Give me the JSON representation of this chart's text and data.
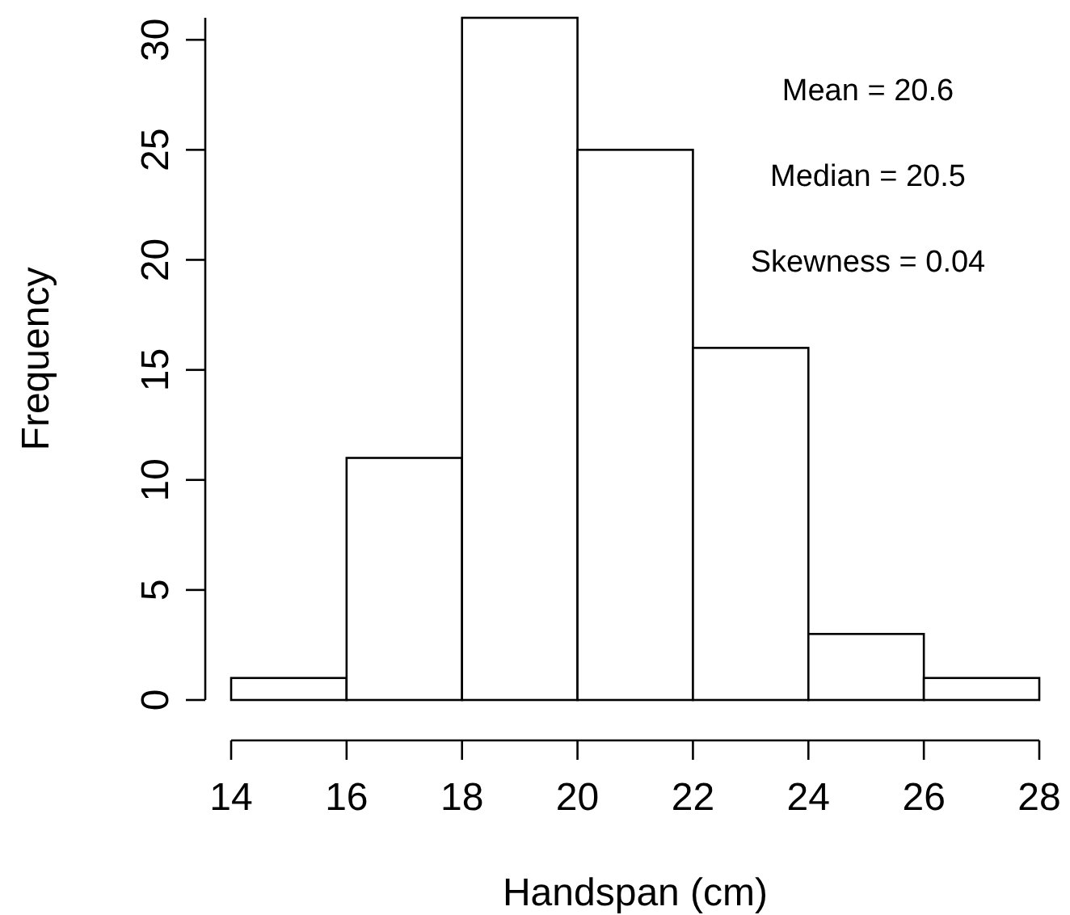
{
  "chart_data": {
    "type": "histogram",
    "xlabel": "Handspan (cm)",
    "ylabel": "Frequency",
    "bins": [
      14,
      16,
      18,
      20,
      22,
      24,
      26,
      28
    ],
    "values": [
      1,
      11,
      31,
      25,
      16,
      3,
      1
    ],
    "color": "#ffffff",
    "xlim": [
      14,
      28
    ],
    "xticks": [
      14,
      16,
      18,
      20,
      22,
      24,
      26,
      28
    ],
    "ylim": [
      0,
      31
    ],
    "yticks": [
      0,
      5,
      10,
      15,
      20,
      25,
      30
    ],
    "annotations": [
      "Mean = 20.6",
      "Median = 20.5",
      "Skewness = 0.04"
    ]
  }
}
